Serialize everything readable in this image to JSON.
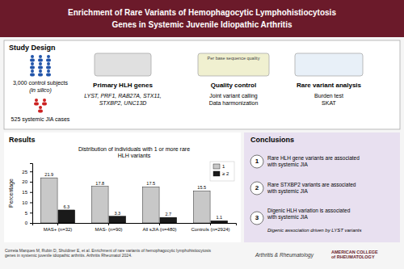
{
  "chart_data": {
    "type": "bar",
    "title": "Distribution of individuals with 1 or more rare\nHLH variants",
    "categories": [
      "MAS+ (n=32)",
      "MAS- (n=90)",
      "All sJIA (n=480)",
      "Controls (n=2924)"
    ],
    "series": [
      {
        "name": "1",
        "color": "#c8c8c8",
        "values": [
          21.9,
          17.8,
          17.5,
          15.5
        ]
      },
      {
        "name": "≥ 2",
        "color": "#1a1a1a",
        "values": [
          6.3,
          3.3,
          2.7,
          1.1
        ]
      }
    ],
    "y_label": "Percentage",
    "ylim": [
      0,
      29
    ],
    "yticks": [
      0,
      5,
      10,
      15,
      20,
      25
    ],
    "legend": "upper right",
    "data_labels": true,
    "grid": false,
    "annotations": [
      "Enrichment of Rare Variants of Hemophagocytic Lymphohistiocytosis",
      "Genes in Systemic Juvenile Idiopathic Arthritis",
      "Study Design",
      "3,000 control subjects",
      "(in silico)",
      "525 systemic JIA cases",
      "Primary HLH genes",
      "LYST, PRF1, RAB27A, STX11,\nSTXBP2, UNC13D",
      "Quality control",
      "Joint variant calling\nData harmonization",
      "Rare variant analysis",
      "Burden test\nSKAT",
      "Per base sequence quality",
      "Results",
      "Conclusions",
      "1",
      "Rare HLH gene variants are associated\nwith systemic JIA",
      "2",
      "Rare STXBP2 variants are associated\nwith systemic JIA",
      "3",
      "Digenic HLH variation is associated\nwith systemic JIA",
      "Digenic association driven by LYST variants",
      "Correia Marques M, Rubin D, Shuldiner E, et al. Enrichment of rare variants of hemophagocytic lymphohistiocytosis\ngenes in systemic juvenile idiopathic arthritis. Arthritis Rheumatol 2024.",
      "Arthritis & Rheumatology",
      "AMERICAN COLLEGE\nof RHEUMATOLOGY"
    ]
  }
}
